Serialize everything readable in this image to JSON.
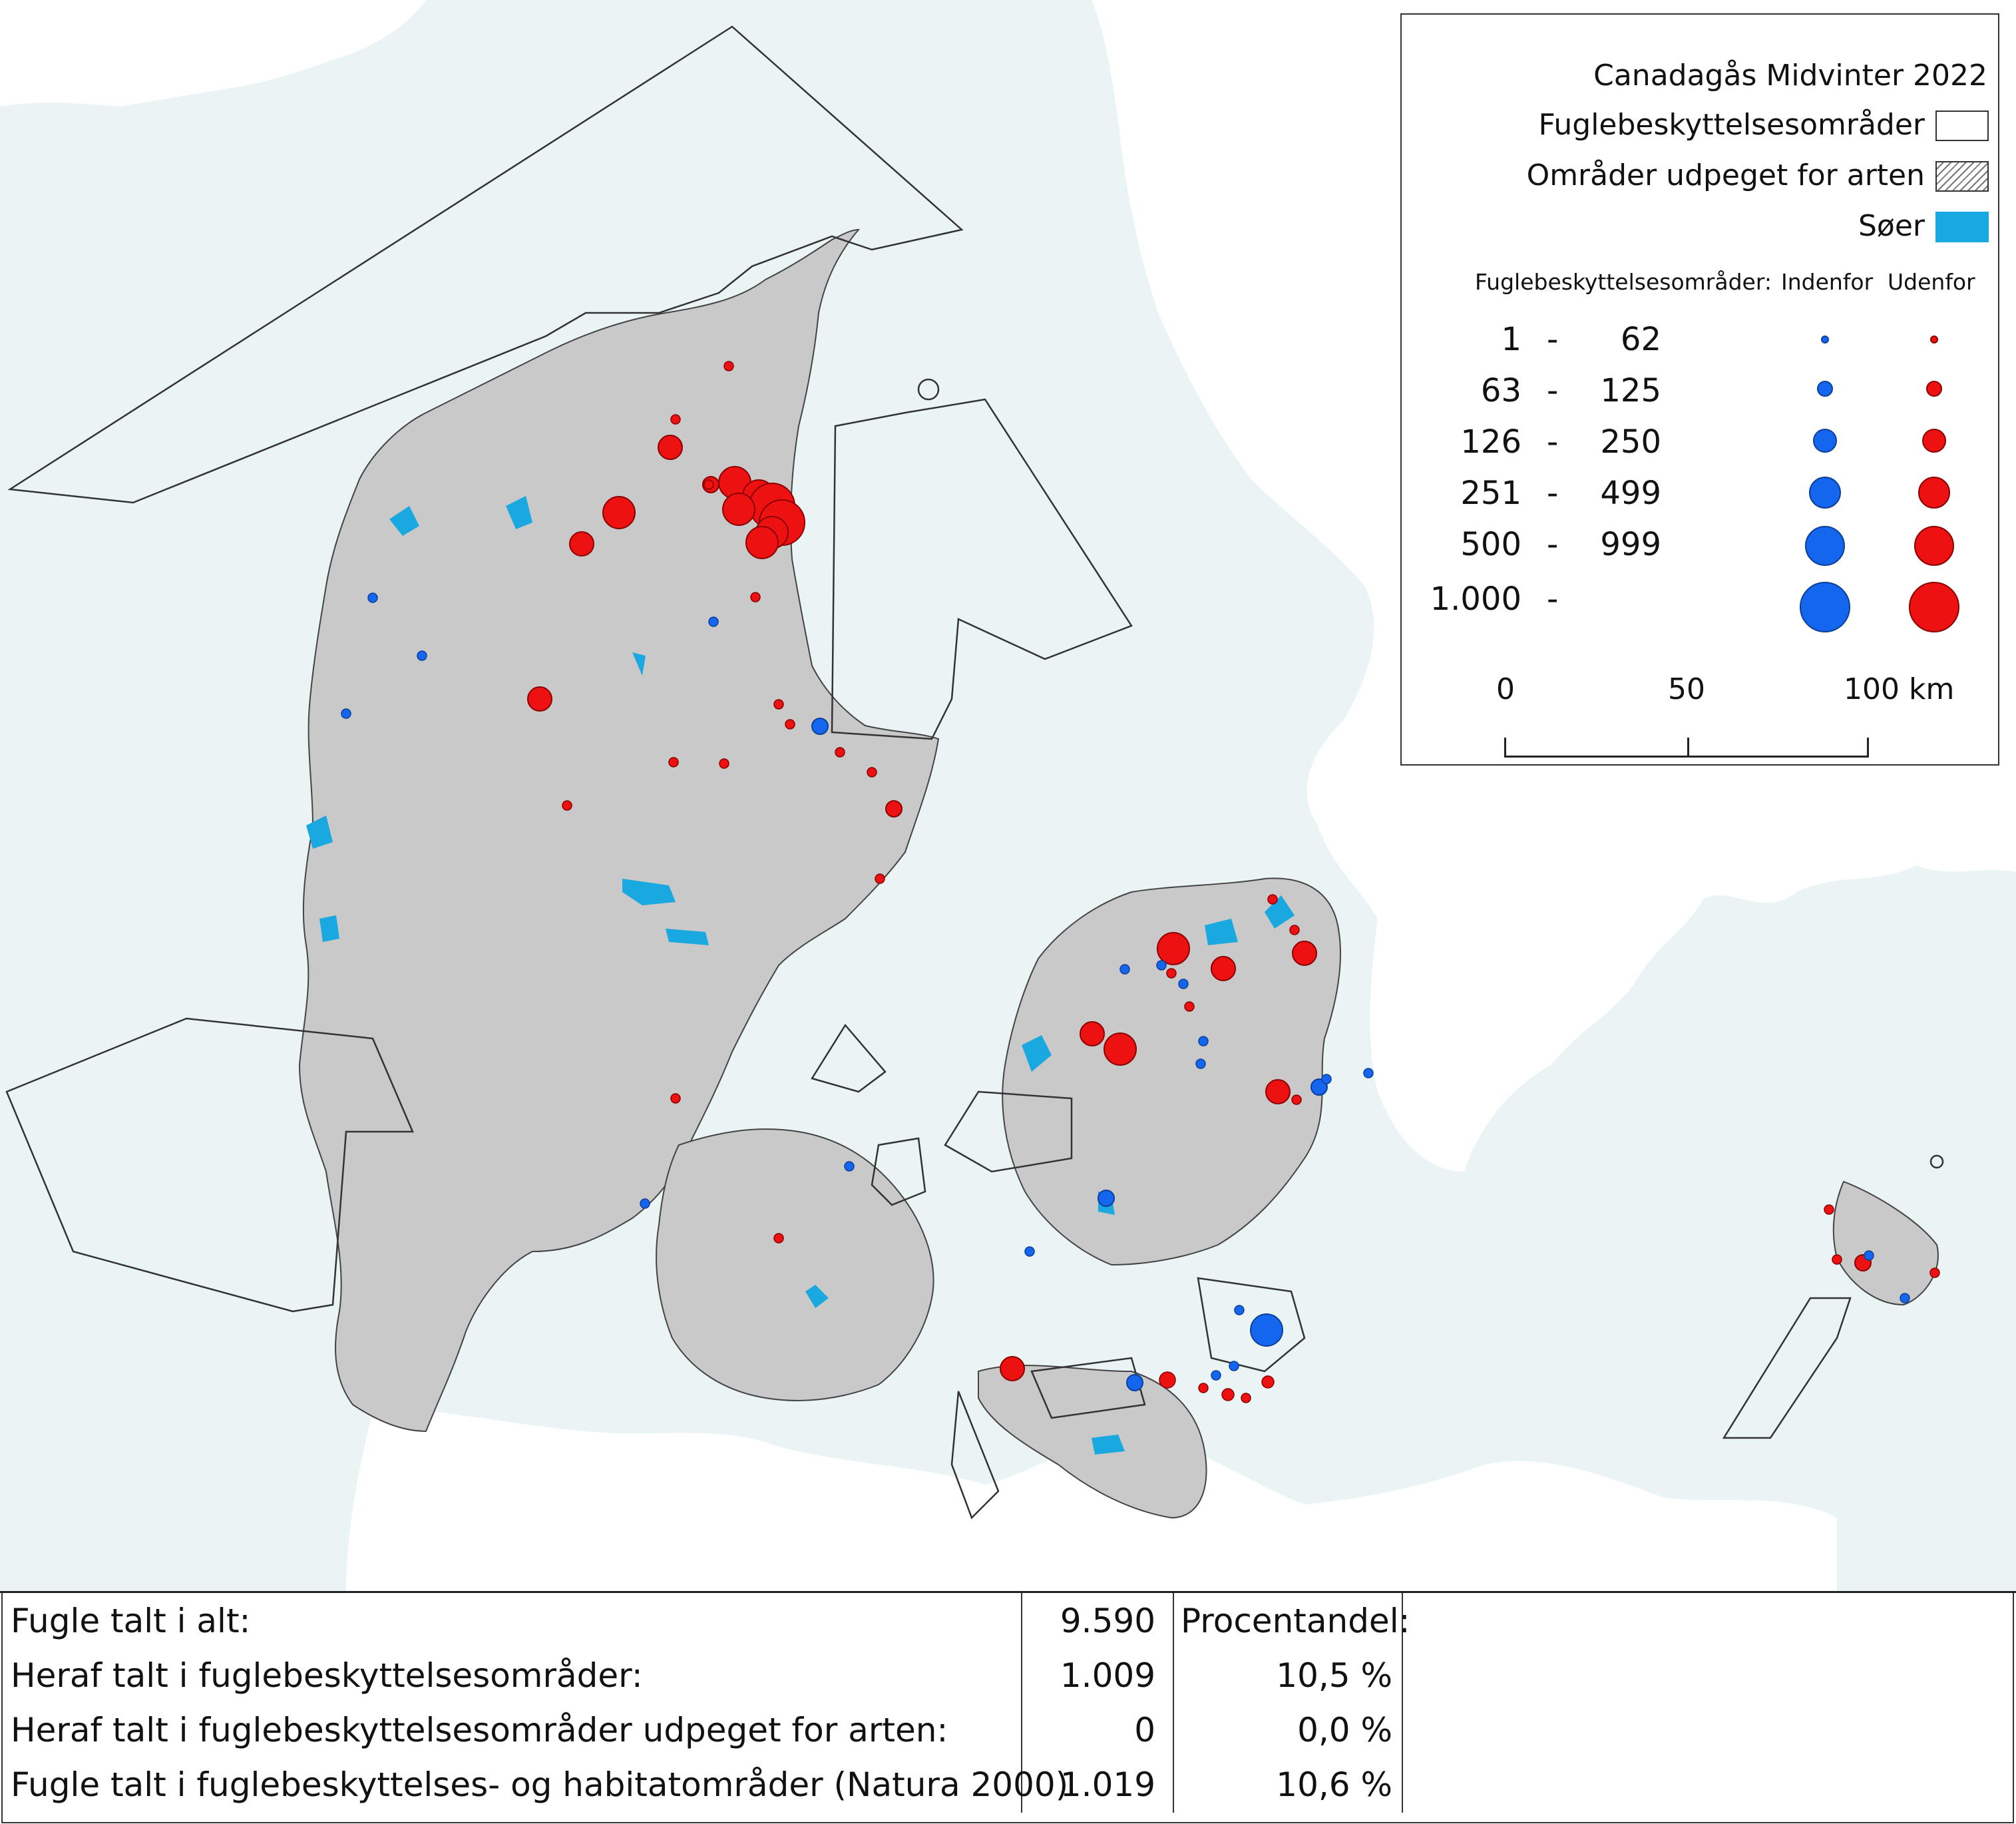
{
  "legend": {
    "title": "Canadagås Midvinter 2022",
    "layer_protected": "Fuglebeskyttelsesområder",
    "layer_designated": "Områder udpeget for arten",
    "layer_lakes": "Søer",
    "size_header": "Fuglebeskyttelsesområder:",
    "inside_label": "Indenfor",
    "outside_label": "Udenfor",
    "ranges": [
      {
        "from": "1",
        "to": "62"
      },
      {
        "from": "63",
        "to": "125"
      },
      {
        "from": "126",
        "to": "250"
      },
      {
        "from": "251",
        "to": "499"
      },
      {
        "from": "500",
        "to": "999"
      },
      {
        "from": "1.000",
        "to": ""
      }
    ],
    "range_dash": "-",
    "scale": {
      "s0": "0",
      "s50": "50",
      "s100": "100 km"
    },
    "colors": {
      "inside": "#1466ee",
      "outside": "#ee1111",
      "lakes": "#1aa8e0",
      "land": "#c8c9c8",
      "sea": "#eaf4f4"
    }
  },
  "stats": {
    "rows": [
      {
        "label": "Fugle talt i alt:",
        "value": "9.590",
        "pct": "Procentandel:"
      },
      {
        "label": "Heraf talt i fuglebeskyttelsesområder:",
        "value": "1.009",
        "pct": "10,5 %"
      },
      {
        "label": "Heraf talt i fuglebeskyttelsesområder udpeget for arten:",
        "value": "0",
        "pct": "0,0 %"
      },
      {
        "label": "Fugle talt i fuglebeskyttelses- og habitatområder (Natura 2000)",
        "value": "1.019",
        "pct": "10,6 %"
      }
    ]
  }
}
